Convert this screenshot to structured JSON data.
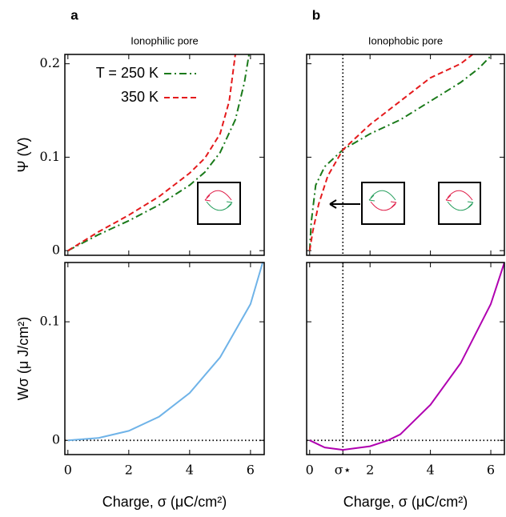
{
  "chart_data": [
    {
      "type": "line",
      "panel": "a",
      "title": "Ionophilic pore",
      "ylabel": "Ψ (V)",
      "xlim": [
        -0.1,
        6.45
      ],
      "xticks": [
        0,
        2,
        4,
        6
      ],
      "xtick_labels": false,
      "ylim": [
        -0.005,
        0.21
      ],
      "yticks": [
        0,
        0.1,
        0.2
      ],
      "ytick_labels": true,
      "legend": "upper left",
      "series": [
        {
          "name": "T = 250 K",
          "color": "#1a7a1a",
          "dash": "dashdot",
          "x": [
            0,
            1,
            2,
            3,
            4,
            4.5,
            5,
            5.5,
            5.8,
            5.95
          ],
          "values": [
            0,
            0.017,
            0.032,
            0.049,
            0.07,
            0.084,
            0.105,
            0.14,
            0.18,
            0.21
          ]
        },
        {
          "name": "350 K",
          "color": "#e41a1c",
          "dash": "dashed",
          "x": [
            0,
            1,
            2,
            3,
            4,
            4.5,
            5,
            5.3,
            5.5
          ],
          "values": [
            0,
            0.02,
            0.038,
            0.058,
            0.083,
            0.099,
            0.125,
            0.16,
            0.21
          ]
        }
      ]
    },
    {
      "type": "line",
      "panel": "b",
      "title": "Ionophobic pore",
      "xlim": [
        -0.1,
        6.45
      ],
      "xticks": [
        0,
        2,
        4,
        6
      ],
      "xtick_labels": false,
      "ylim": [
        -0.005,
        0.21
      ],
      "yticks": [
        0,
        0.1,
        0.2
      ],
      "ytick_labels": false,
      "vline": 1.1,
      "series": [
        {
          "color": "#1a7a1a",
          "dash": "dashdot",
          "x": [
            0,
            0.05,
            0.2,
            0.5,
            1.1,
            2,
            3,
            4,
            5,
            5.6,
            6.05
          ],
          "values": [
            0,
            0.03,
            0.07,
            0.09,
            0.108,
            0.125,
            0.14,
            0.16,
            0.18,
            0.195,
            0.21
          ]
        },
        {
          "color": "#e41a1c",
          "dash": "dashed",
          "x": [
            0,
            0.1,
            0.3,
            0.6,
            1.1,
            2,
            3,
            4,
            5,
            5.4
          ],
          "values": [
            0,
            0.02,
            0.05,
            0.08,
            0.108,
            0.135,
            0.16,
            0.185,
            0.2,
            0.21
          ]
        }
      ]
    },
    {
      "type": "line",
      "xlabel": "Charge, σ (μC/cm²)",
      "ylabel": "Wσ (μ J/cm²)",
      "xlim": [
        -0.1,
        6.45
      ],
      "xticks": [
        0,
        2,
        4,
        6
      ],
      "xtick_labels": true,
      "ylim": [
        -0.012,
        0.15
      ],
      "yticks": [
        0,
        0.1
      ],
      "ytick_labels": true,
      "hline": 0,
      "series": [
        {
          "color": "#6fb3e8",
          "dash": "solid",
          "x": [
            0,
            1,
            2,
            3,
            4,
            5,
            6,
            6.4
          ],
          "values": [
            0,
            0.002,
            0.008,
            0.02,
            0.04,
            0.07,
            0.115,
            0.15
          ]
        }
      ]
    },
    {
      "type": "line",
      "xlabel": "Charge, σ (μC/cm²)",
      "xlim": [
        -0.1,
        6.45
      ],
      "xticks": [
        0,
        {
          "value": 1.1,
          "label": "σ⋆"
        },
        2,
        4,
        6
      ],
      "xtick_labels": true,
      "ylim": [
        -0.012,
        0.15
      ],
      "yticks": [
        0,
        0.1
      ],
      "ytick_labels": false,
      "hline": 0,
      "vline": 1.1,
      "series": [
        {
          "color": "#b000b0",
          "dash": "solid",
          "x": [
            0,
            0.5,
            1.1,
            2,
            2.6,
            3,
            4,
            5,
            6,
            6.45
          ],
          "values": [
            0,
            -0.006,
            -0.008,
            -0.005,
            0,
            0.005,
            0.03,
            0.065,
            0.115,
            0.15
          ]
        }
      ]
    }
  ]
}
